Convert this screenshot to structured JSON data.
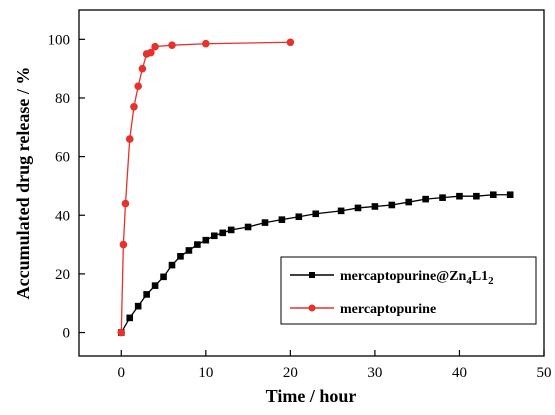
{
  "chart_data": {
    "type": "line",
    "title": "",
    "xlabel": "Time / hour",
    "ylabel": "Accumulated drug release / %",
    "xlim": [
      -5,
      50
    ],
    "ylim": [
      -8,
      110
    ],
    "xticks": [
      0,
      10,
      20,
      30,
      40,
      50
    ],
    "yticks": [
      0,
      20,
      40,
      60,
      80,
      100
    ],
    "grid": false,
    "legend_position": "bottom-right",
    "series": [
      {
        "name": "mercaptopurine@Zn",
        "name_sub1": "4",
        "name_mid": "L1",
        "name_sub2": "2",
        "color": "#000000",
        "marker": "square",
        "x": [
          0,
          1,
          2,
          3,
          4,
          5,
          6,
          7,
          8,
          9,
          10,
          11,
          12,
          13,
          15,
          17,
          19,
          21,
          23,
          26,
          28,
          30,
          32,
          34,
          36,
          38,
          40,
          42,
          44,
          46
        ],
        "y": [
          0,
          5,
          9,
          13,
          16,
          19,
          23,
          26,
          28,
          30,
          31.5,
          33,
          34,
          35,
          36,
          37.5,
          38.5,
          39.5,
          40.5,
          41.5,
          42.5,
          43,
          43.5,
          44.5,
          45.5,
          46,
          46.5,
          46.5,
          47,
          47
        ]
      },
      {
        "name": "mercaptopurine",
        "color": "#e8312c",
        "marker": "circle",
        "x": [
          0,
          0.25,
          0.5,
          1,
          1.5,
          2,
          2.5,
          3,
          3.5,
          4,
          6,
          10,
          20
        ],
        "y": [
          0,
          30,
          44,
          66,
          77,
          84,
          90,
          95,
          95.5,
          97.5,
          98,
          98.5,
          99
        ]
      }
    ]
  }
}
